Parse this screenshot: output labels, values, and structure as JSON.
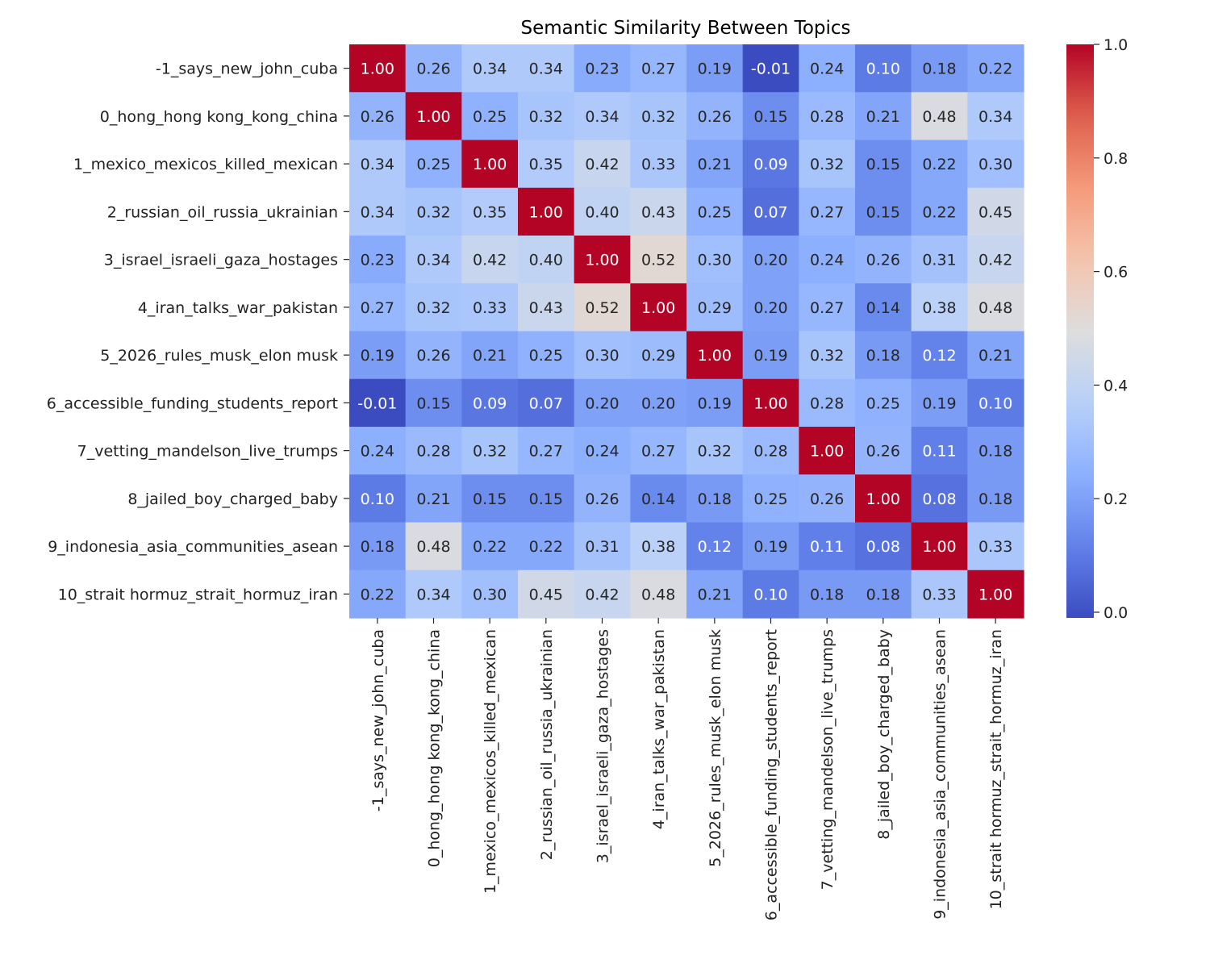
{
  "chart_data": {
    "type": "heatmap",
    "title": "Semantic Similarity Between Topics",
    "categories": [
      "-1_says_new_john_cuba",
      "0_hong_hong kong_kong_china",
      "1_mexico_mexicos_killed_mexican",
      "2_russian_oil_russia_ukrainian",
      "3_israel_israeli_gaza_hostages",
      "4_iran_talks_war_pakistan",
      "5_2026_rules_musk_elon musk",
      "6_accessible_funding_students_report",
      "7_vetting_mandelson_live_trumps",
      "8_jailed_boy_charged_baby",
      "9_indonesia_asia_communities_asean",
      "10_strait hormuz_strait_hormuz_iran"
    ],
    "matrix": [
      [
        1.0,
        0.26,
        0.34,
        0.34,
        0.23,
        0.27,
        0.19,
        -0.01,
        0.24,
        0.1,
        0.18,
        0.22
      ],
      [
        0.26,
        1.0,
        0.25,
        0.32,
        0.34,
        0.32,
        0.26,
        0.15,
        0.28,
        0.21,
        0.48,
        0.34
      ],
      [
        0.34,
        0.25,
        1.0,
        0.35,
        0.42,
        0.33,
        0.21,
        0.09,
        0.32,
        0.15,
        0.22,
        0.3
      ],
      [
        0.34,
        0.32,
        0.35,
        1.0,
        0.4,
        0.43,
        0.25,
        0.07,
        0.27,
        0.15,
        0.22,
        0.45
      ],
      [
        0.23,
        0.34,
        0.42,
        0.4,
        1.0,
        0.52,
        0.3,
        0.2,
        0.24,
        0.26,
        0.31,
        0.42
      ],
      [
        0.27,
        0.32,
        0.33,
        0.43,
        0.52,
        1.0,
        0.29,
        0.2,
        0.27,
        0.14,
        0.38,
        0.48
      ],
      [
        0.19,
        0.26,
        0.21,
        0.25,
        0.3,
        0.29,
        1.0,
        0.19,
        0.32,
        0.18,
        0.12,
        0.21
      ],
      [
        -0.01,
        0.15,
        0.09,
        0.07,
        0.2,
        0.2,
        0.19,
        1.0,
        0.28,
        0.25,
        0.19,
        0.1
      ],
      [
        0.24,
        0.28,
        0.32,
        0.27,
        0.24,
        0.27,
        0.32,
        0.28,
        1.0,
        0.26,
        0.11,
        0.18
      ],
      [
        0.1,
        0.21,
        0.15,
        0.15,
        0.26,
        0.14,
        0.18,
        0.25,
        0.26,
        1.0,
        0.08,
        0.18
      ],
      [
        0.18,
        0.48,
        0.22,
        0.22,
        0.31,
        0.38,
        0.12,
        0.19,
        0.11,
        0.08,
        1.0,
        0.33
      ],
      [
        0.22,
        0.34,
        0.3,
        0.45,
        0.42,
        0.48,
        0.21,
        0.1,
        0.18,
        0.18,
        0.33,
        1.0
      ]
    ],
    "value_range": [
      -0.01,
      1.0
    ],
    "colormap": "coolwarm",
    "colorbar_ticks": [
      0.0,
      0.2,
      0.4,
      0.6,
      0.8,
      1.0
    ],
    "colorbar_tick_labels": [
      "0.0",
      "0.2",
      "0.4",
      "0.6",
      "0.8",
      "1.0"
    ],
    "annotation_format": "2 decimals",
    "grid": false,
    "legend": "colorbar at right"
  }
}
